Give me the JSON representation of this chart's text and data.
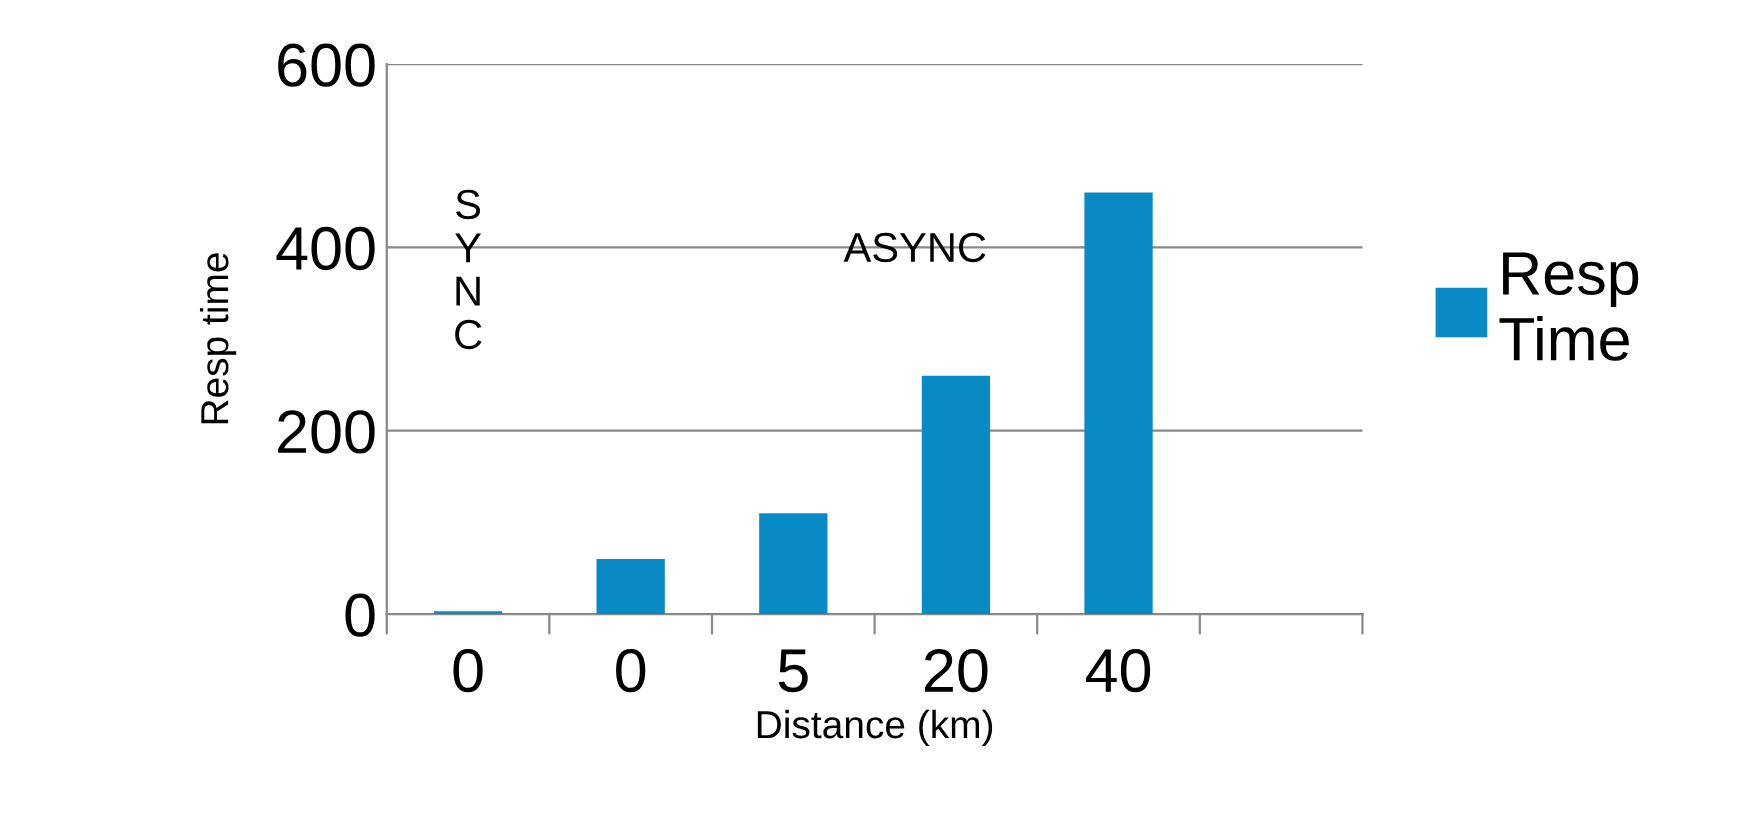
{
  "chart_data": {
    "type": "bar",
    "xlabel": "Distance (km)",
    "ylabel": "Resp time",
    "categories": [
      "0",
      "0",
      "5",
      "20",
      "40",
      null
    ],
    "series": [
      {
        "name": "Resp Time",
        "color": "#0a8ac4",
        "values": [
          3,
          60,
          110,
          260,
          460,
          null
        ]
      }
    ],
    "ylim": [
      0,
      600
    ],
    "yticks": [
      0,
      200,
      400,
      600
    ],
    "grid": "y",
    "legend": "right",
    "annotations": [
      "SYNC",
      "ASYNC"
    ]
  }
}
